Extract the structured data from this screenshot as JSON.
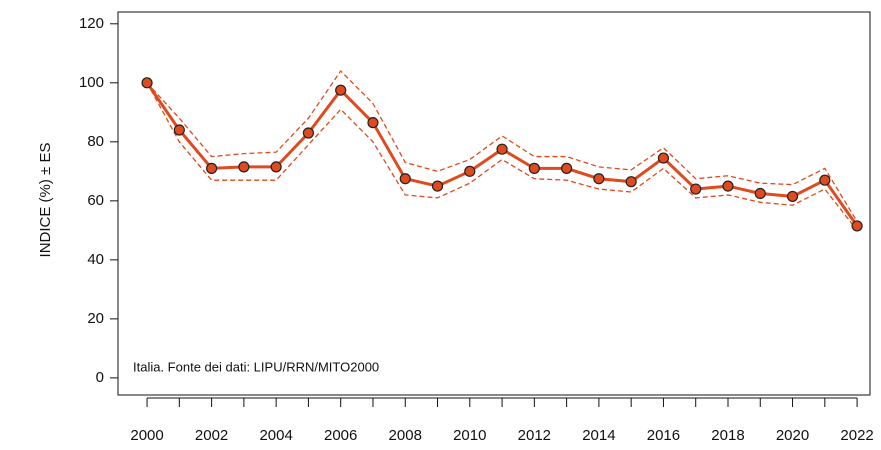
{
  "chart_data": {
    "type": "line",
    "y_label": "INDICE (%) ± ES",
    "annotation": "Italia. Fonte dei dati: LIPU/RRN/MITO2000",
    "x": [
      2000,
      2001,
      2002,
      2003,
      2004,
      2005,
      2006,
      2007,
      2008,
      2009,
      2010,
      2011,
      2012,
      2013,
      2014,
      2015,
      2016,
      2017,
      2018,
      2019,
      2020,
      2021,
      2022
    ],
    "values": [
      100,
      84,
      71,
      71.5,
      71.5,
      83,
      97.5,
      86.5,
      67.5,
      65,
      70,
      77.5,
      71,
      71,
      67.5,
      66.5,
      74.5,
      64,
      65,
      62.5,
      61.5,
      67,
      51.5
    ],
    "upper": [
      100,
      88,
      75,
      76,
      76.5,
      88,
      104,
      93,
      73,
      70,
      74,
      82,
      75,
      75,
      71.5,
      70.5,
      78,
      67.5,
      68.5,
      66,
      65.5,
      71,
      53
    ],
    "lower": [
      100,
      80,
      67,
      67,
      67,
      79,
      91,
      80,
      62,
      61,
      66,
      74,
      67.5,
      67,
      64,
      63,
      71,
      61,
      62,
      59.5,
      58.5,
      64,
      50
    ],
    "color": "#e04a1f",
    "xlim": [
      1999.1,
      2022.4
    ],
    "ylim": [
      -5.8,
      124
    ],
    "xticks": [
      2000,
      2002,
      2004,
      2006,
      2008,
      2010,
      2012,
      2014,
      2016,
      2018,
      2020,
      2022
    ],
    "yticks": [
      0,
      20,
      40,
      60,
      80,
      100,
      120
    ]
  }
}
